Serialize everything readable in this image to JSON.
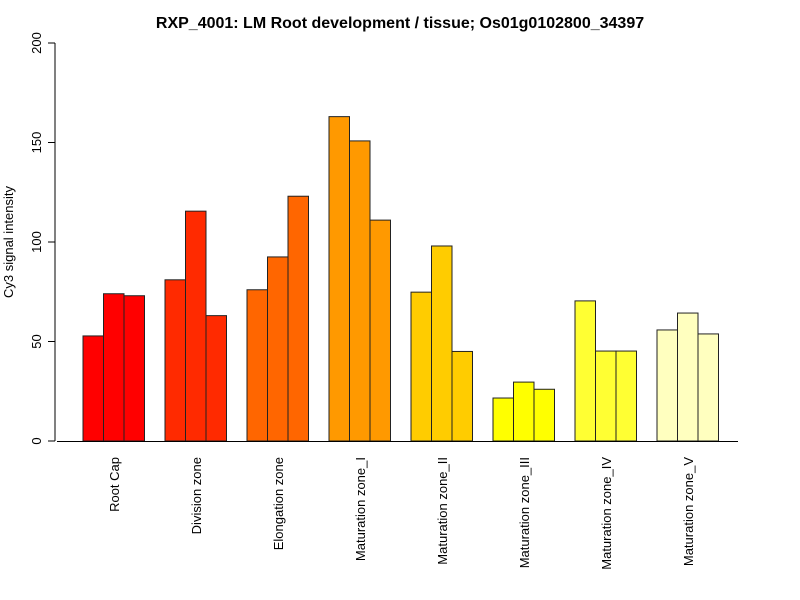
{
  "chart_data": {
    "type": "bar",
    "title": "RXP_4001: LM Root development / tissue; Os01g0102800_34397",
    "xlabel": "",
    "ylabel": "Cy3 signal intensity",
    "ylim": [
      0,
      200
    ],
    "yticks": [
      0,
      50,
      100,
      150,
      200
    ],
    "grid": false,
    "legend": "none",
    "categories": [
      "Root Cap",
      "Division zone",
      "Elongation zone",
      "Maturation zone_I",
      "Maturation zone_II",
      "Maturation zone_III",
      "Maturation zone_IV",
      "Maturation zone_V"
    ],
    "group_colors": [
      "#FF0000",
      "#FF2A00",
      "#FF6600",
      "#FF9900",
      "#FFCC00",
      "#FFFF00",
      "#FFFF33",
      "#FFFFBF"
    ],
    "replicates_per_group": 3,
    "values": [
      [
        52.8,
        74.0,
        73.0
      ],
      [
        81.0,
        115.5,
        63.0
      ],
      [
        76.0,
        92.5,
        123.0
      ],
      [
        163.0,
        150.8,
        111.0
      ],
      [
        74.8,
        98.0,
        45.0
      ],
      [
        21.6,
        29.6,
        26.0
      ],
      [
        70.4,
        45.2,
        45.2
      ],
      [
        55.8,
        64.3,
        53.8
      ]
    ]
  }
}
